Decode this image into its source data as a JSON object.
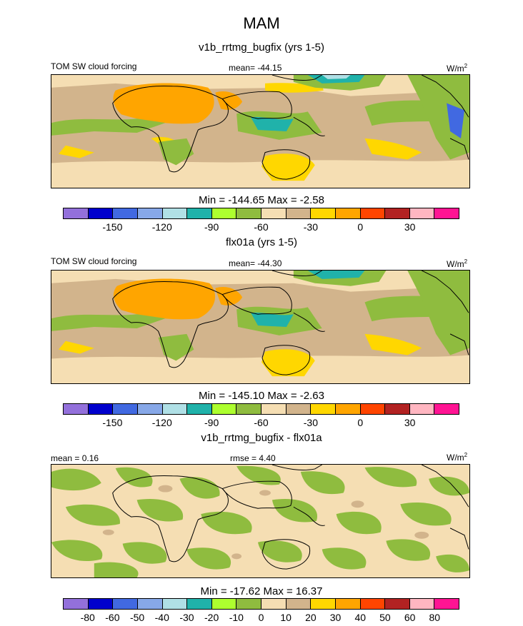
{
  "figure": {
    "title": "MAM"
  },
  "panels": [
    {
      "title": "v1b_rrtmg_bugfix (yrs 1-5)",
      "left_label": "TOM SW cloud forcing",
      "center_label": "mean= -44.15",
      "units_base": "W/m",
      "units_exp": "2",
      "stats": "Min = -144.65 Max =  -2.58"
    },
    {
      "title": "flx01a (yrs 1-5)",
      "left_label": "TOM SW cloud forcing",
      "center_label": "mean= -44.30",
      "units_base": "W/m",
      "units_exp": "2",
      "stats": "Min = -145.10 Max =  -2.63"
    },
    {
      "title": "v1b_rrtmg_bugfix - flx01a",
      "left_label": "mean =   0.16",
      "center_label": "rmse =   4.40",
      "units_base": "W/m",
      "units_exp": "2",
      "stats": "Min = -17.62 Max =  16.37"
    }
  ],
  "colorbars": {
    "field": {
      "colors": [
        "#9370db",
        "#0000cd",
        "#4169e1",
        "#87a8e8",
        "#b0e0e6",
        "#20b2aa",
        "#adff2f",
        "#8fbc3f",
        "#f5deb3",
        "#d2b48c",
        "#ffd700",
        "#ffa500",
        "#ff4500",
        "#b22222",
        "#ffb6c1",
        "#ff1493"
      ],
      "tick_labels": [
        "-150",
        "-120",
        "-90",
        "-60",
        "-30",
        "0",
        "30"
      ]
    },
    "diff": {
      "colors": [
        "#9370db",
        "#0000cd",
        "#4169e1",
        "#87a8e8",
        "#b0e0e6",
        "#20b2aa",
        "#adff2f",
        "#8fbc3f",
        "#f5deb3",
        "#d2b48c",
        "#ffd700",
        "#ffa500",
        "#ff4500",
        "#b22222",
        "#ffb6c1",
        "#ff1493"
      ],
      "tick_labels": [
        "-80",
        "-60",
        "-50",
        "-40",
        "-30",
        "-20",
        "-10",
        "0",
        "10",
        "20",
        "30",
        "40",
        "50",
        "60",
        "80"
      ]
    }
  }
}
